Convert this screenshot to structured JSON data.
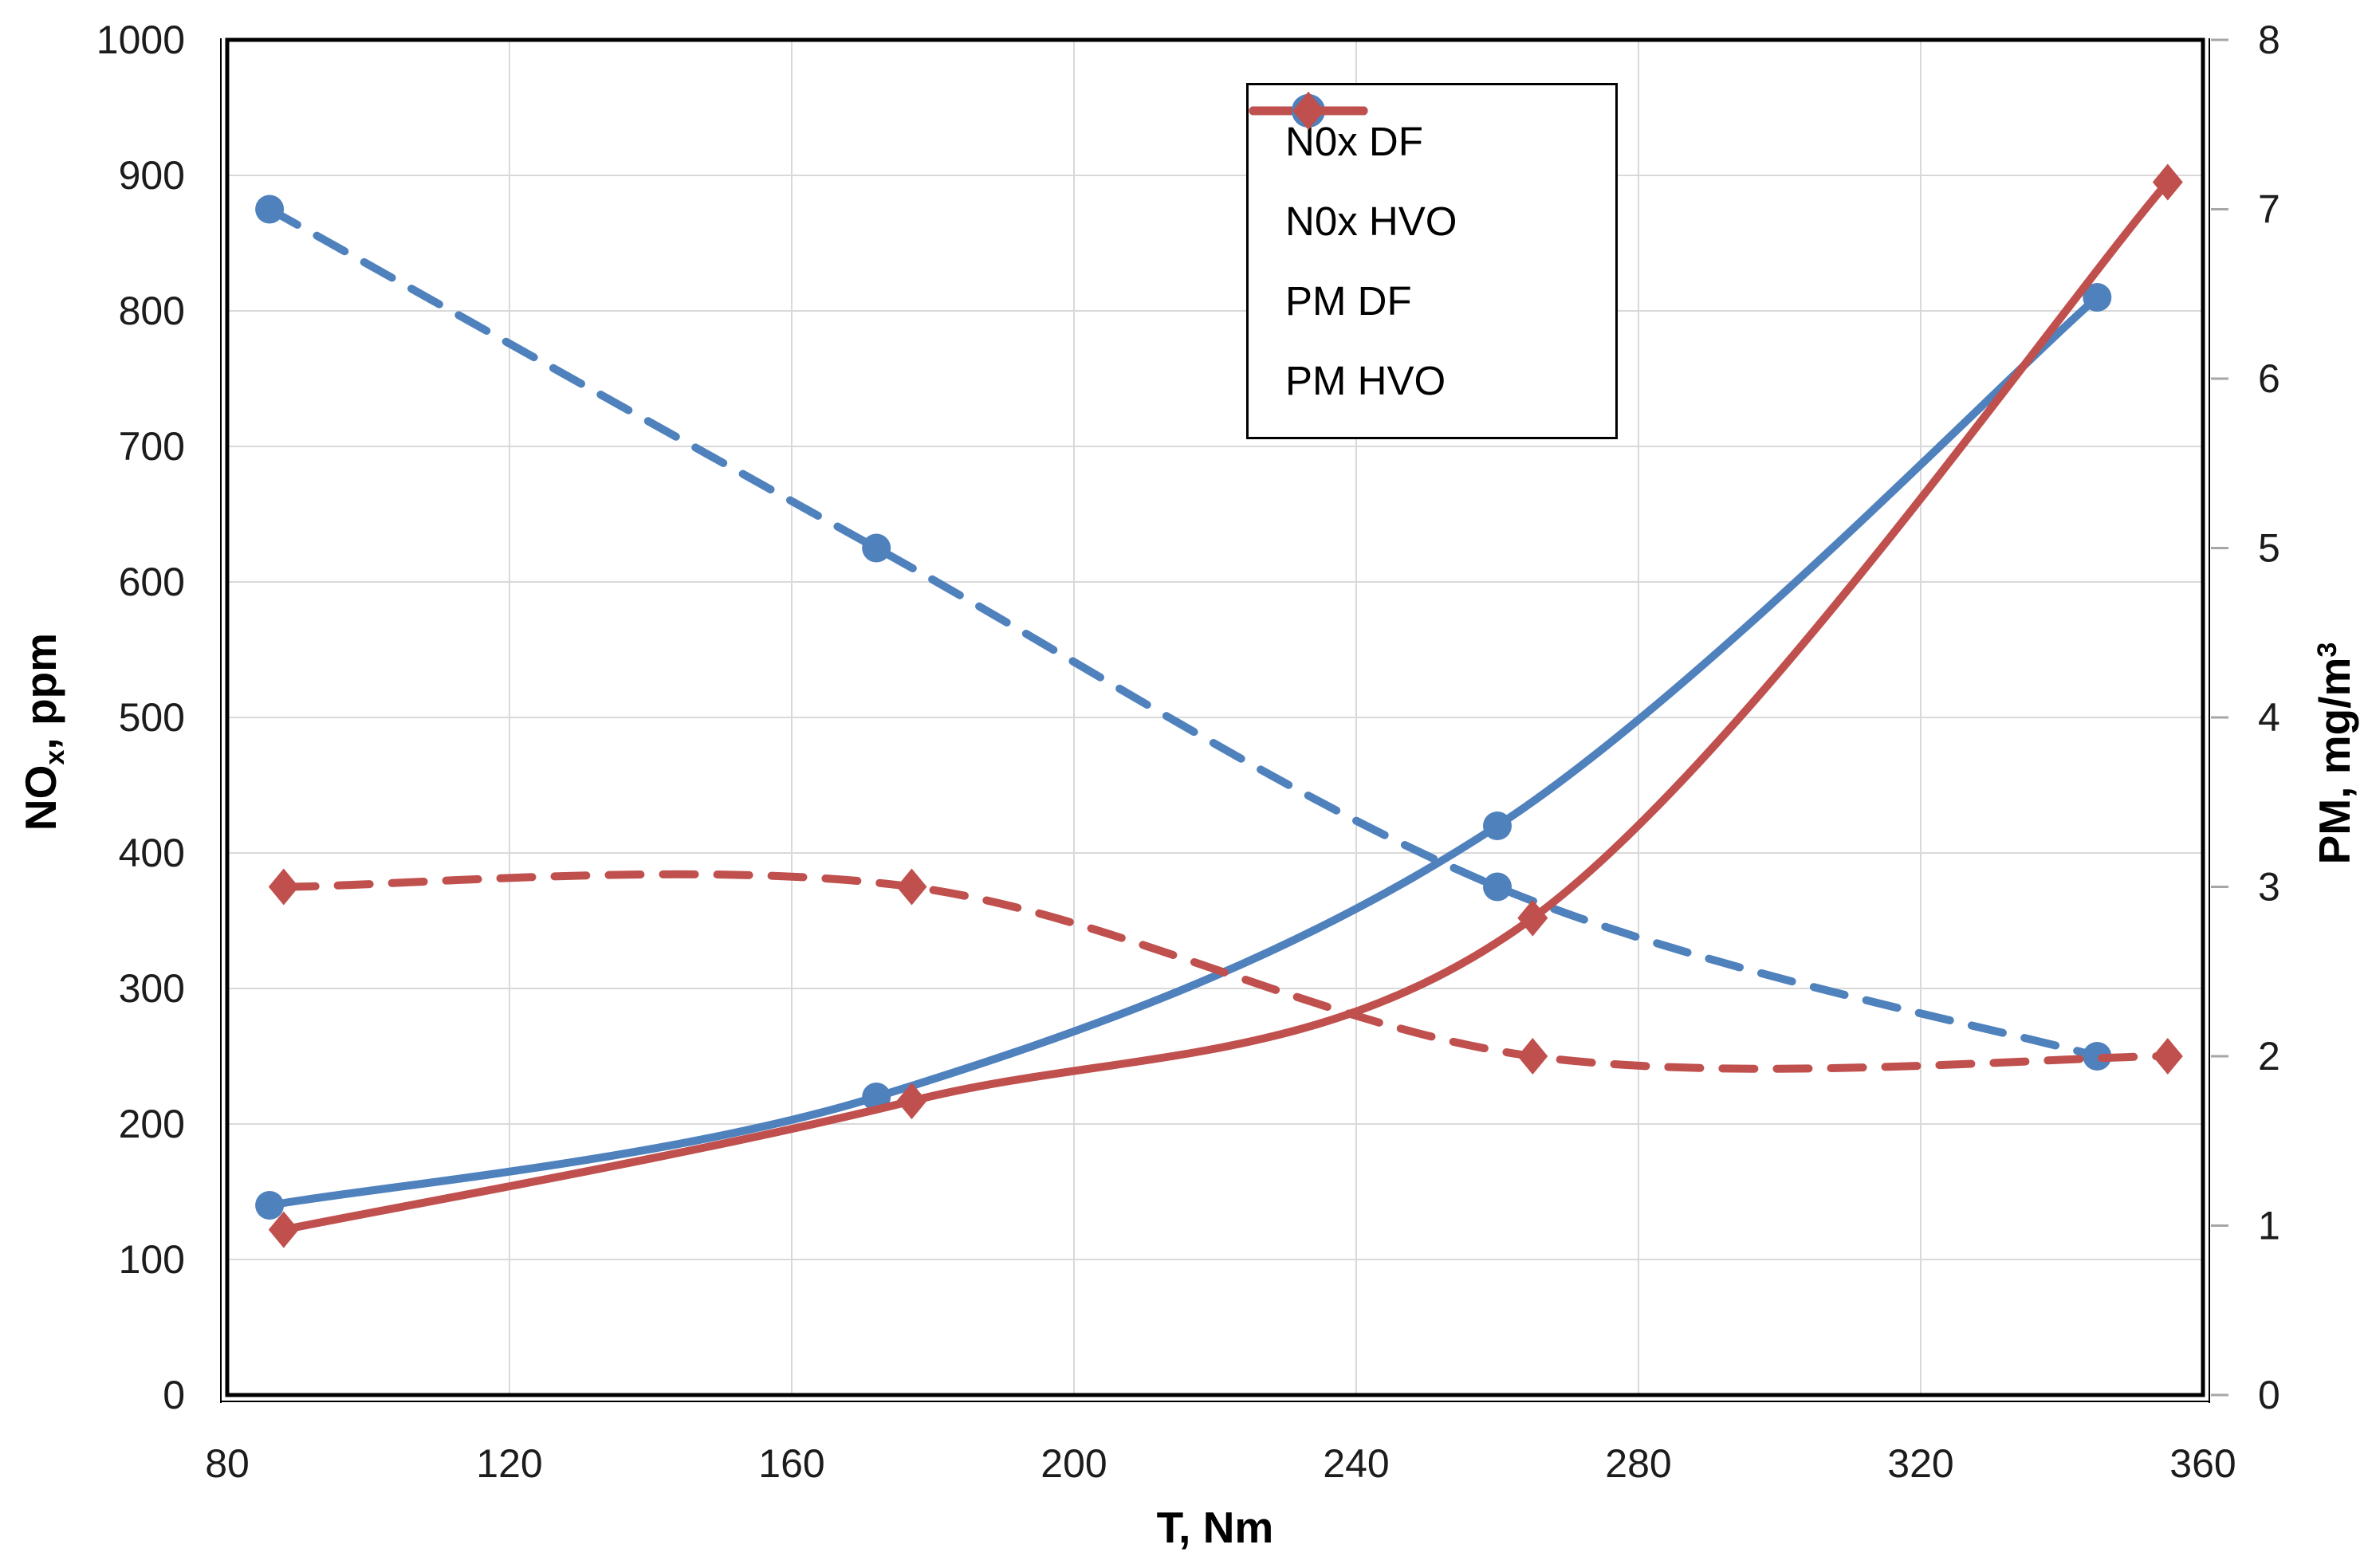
{
  "chart_data": {
    "type": "line",
    "title": "",
    "xlabel": "T, Nm",
    "ylabel_left": "NOx, ppm",
    "ylabel_right": "PM, mg/m3",
    "x_axis": {
      "label_main": "T, Nm",
      "min": 80,
      "max": 360,
      "step": 40,
      "ticks": [
        80,
        120,
        160,
        200,
        240,
        280,
        320,
        360
      ]
    },
    "y_left": {
      "label_prefix": "NO",
      "label_sub": "x",
      "label_suffix": ", ppm",
      "min": 0,
      "max": 1000,
      "step": 100,
      "ticks": [
        0,
        100,
        200,
        300,
        400,
        500,
        600,
        700,
        800,
        900,
        1000
      ]
    },
    "y_right": {
      "label_prefix": "PM, mg/m",
      "label_sup": "3",
      "min": 0,
      "max": 8,
      "step": 1,
      "ticks": [
        0,
        1,
        2,
        3,
        4,
        5,
        6,
        7,
        8
      ]
    },
    "grid": true,
    "legend_position": "top-center-inside",
    "series": [
      {
        "name": "N0x DF",
        "axis": "left",
        "color": "#4F81BD",
        "line": "solid",
        "marker": "circle",
        "x": [
          86,
          172,
          260,
          345
        ],
        "y": [
          140,
          220,
          420,
          810
        ]
      },
      {
        "name": "N0x HVO",
        "axis": "left",
        "color": "#C0504D",
        "line": "solid",
        "marker": "diamond",
        "x": [
          88,
          177,
          265,
          355
        ],
        "y": [
          122,
          217,
          352,
          895
        ]
      },
      {
        "name": "PM DF",
        "axis": "right",
        "color": "#4F81BD",
        "line": "dashed",
        "marker": "circle",
        "x": [
          86,
          172,
          260,
          345
        ],
        "y": [
          7.0,
          5.0,
          3.0,
          2.0
        ]
      },
      {
        "name": "PM HVO",
        "axis": "right",
        "color": "#C0504D",
        "line": "dashed",
        "marker": "diamond",
        "x": [
          88,
          177,
          265,
          355
        ],
        "y": [
          3.0,
          3.0,
          2.0,
          2.0
        ]
      }
    ],
    "colors": {
      "blue": "#4F81BD",
      "red": "#C0504D",
      "gridline": "#D9D9D9",
      "frame": "#000000",
      "tick_mark": "#A6A6A6",
      "text": "#1C1C1C"
    }
  }
}
